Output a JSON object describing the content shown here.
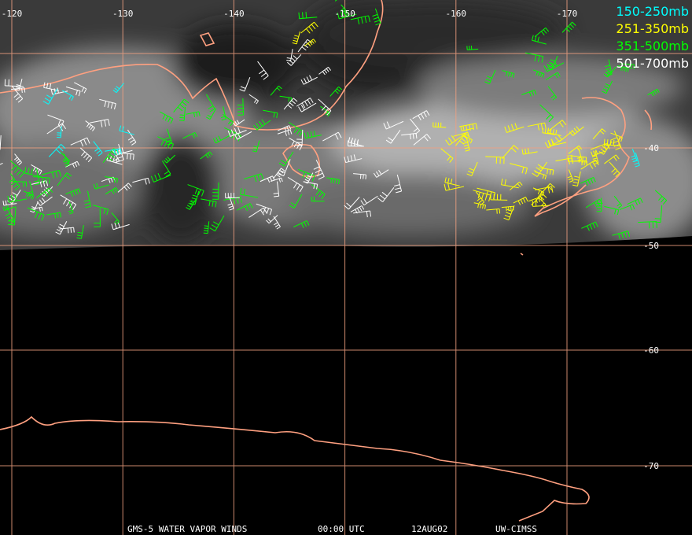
{
  "map": {
    "longitude_labels": [
      "-120",
      "-130",
      "-140",
      "-150",
      "-160",
      "-170"
    ],
    "latitude_labels": [
      "-40",
      "-50",
      "-60",
      "-70"
    ],
    "legend": [
      {
        "label": "150-250mb",
        "color": "#00ffff"
      },
      {
        "label": "251-350mb",
        "color": "#ffff00"
      },
      {
        "label": "351-500mb",
        "color": "#00ff00"
      },
      {
        "label": "501-700mb",
        "color": "#ffffff"
      }
    ],
    "caption": [
      "GMS-5 WATER VAPOR WINDS",
      "00:00 UTC",
      "12AUG02",
      "UW-CIMSS"
    ]
  }
}
